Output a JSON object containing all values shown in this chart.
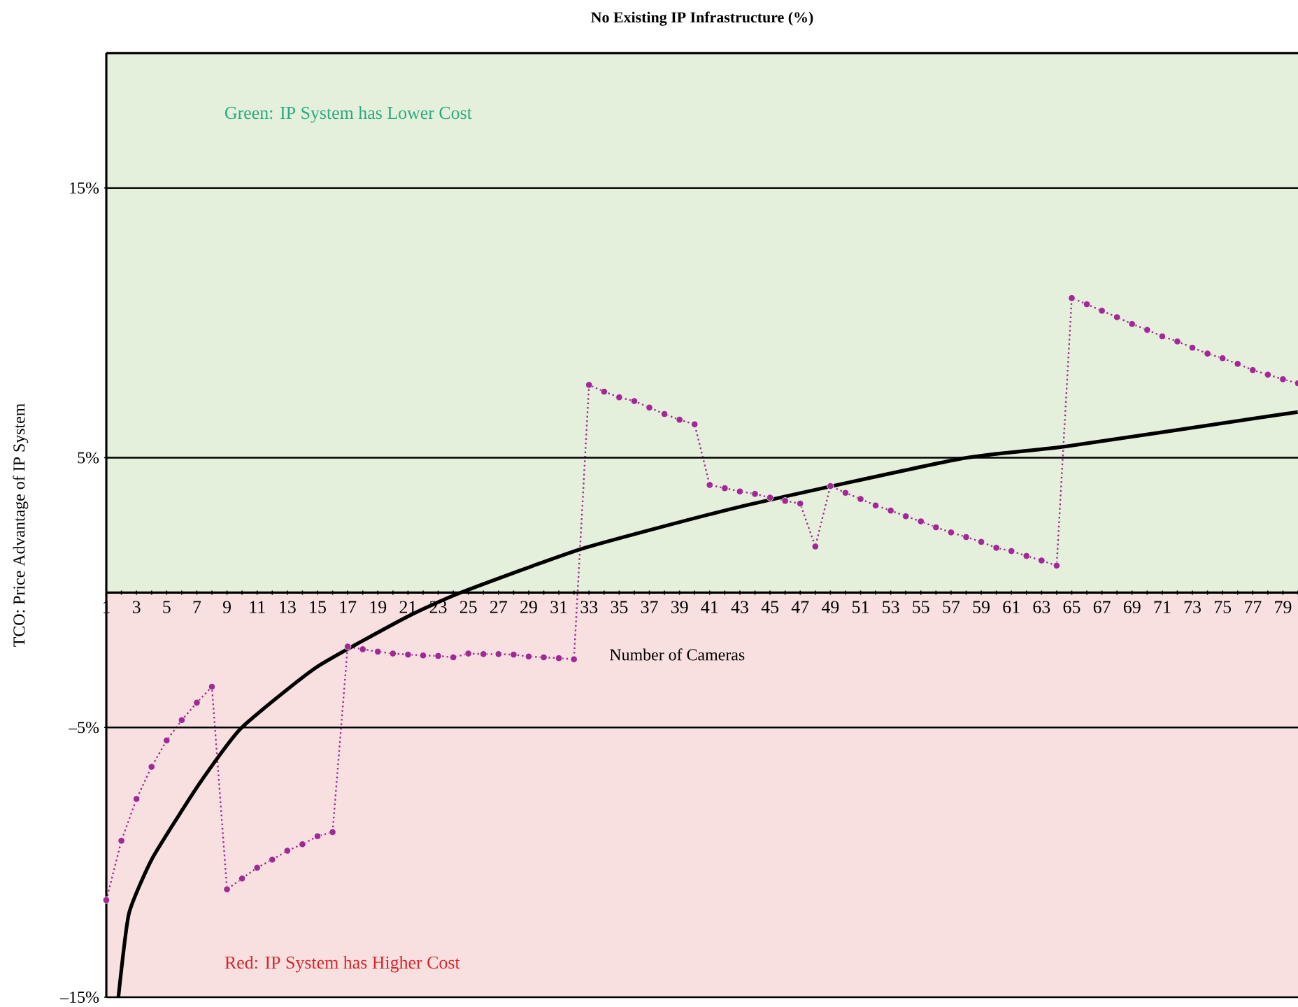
{
  "chart_data": {
    "type": "line",
    "title": "No Existing IP Infrastructure (%)",
    "xlabel": "Number of Cameras",
    "ylabel": "TCO: Price Advantage of IP System",
    "xlim": [
      1,
      80
    ],
    "ylim": [
      -15,
      20
    ],
    "xticks": [
      1,
      {
        "value": 2,
        "label": null
      },
      3,
      {
        "value": 4,
        "label": null
      },
      5,
      {
        "value": 6,
        "label": null
      },
      7,
      {
        "value": 8,
        "label": null
      },
      9,
      {
        "value": 10,
        "label": null
      },
      11,
      {
        "value": 12,
        "label": null
      },
      13,
      {
        "value": 14,
        "label": null
      },
      15,
      {
        "value": 16,
        "label": null
      },
      17,
      {
        "value": 18,
        "label": null
      },
      19,
      {
        "value": 20,
        "label": null
      },
      21,
      {
        "value": 22,
        "label": null
      },
      23,
      {
        "value": 24,
        "label": null
      },
      25,
      {
        "value": 26,
        "label": null
      },
      27,
      {
        "value": 28,
        "label": null
      },
      29,
      {
        "value": 30,
        "label": null
      },
      31,
      {
        "value": 32,
        "label": null
      },
      33,
      {
        "value": 34,
        "label": null
      },
      35,
      {
        "value": 36,
        "label": null
      },
      37,
      {
        "value": 38,
        "label": null
      },
      39,
      {
        "value": 40,
        "label": null
      },
      41,
      {
        "value": 42,
        "label": null
      },
      43,
      {
        "value": 44,
        "label": null
      },
      45,
      {
        "value": 46,
        "label": null
      },
      47,
      {
        "value": 48,
        "label": null
      },
      49,
      {
        "value": 50,
        "label": null
      },
      51,
      {
        "value": 52,
        "label": null
      },
      53,
      {
        "value": 54,
        "label": null
      },
      55,
      {
        "value": 56,
        "label": null
      },
      57,
      {
        "value": 58,
        "label": null
      },
      59,
      {
        "value": 60,
        "label": null
      },
      61,
      {
        "value": 62,
        "label": null
      },
      63,
      {
        "value": 64,
        "label": null
      },
      65,
      {
        "value": 66,
        "label": null
      },
      67,
      {
        "value": 68,
        "label": null
      },
      69,
      {
        "value": 70,
        "label": null
      },
      71,
      {
        "value": 72,
        "label": null
      },
      73,
      {
        "value": 74,
        "label": null
      },
      75,
      {
        "value": 76,
        "label": null
      },
      77,
      {
        "value": 78,
        "label": null
      },
      79,
      {
        "value": 80,
        "label": null
      }
    ],
    "yticks": [
      {
        "value": -15,
        "label": "–15%"
      },
      {
        "value": -5,
        "label": "–5%"
      },
      {
        "value": 5,
        "label": "5%"
      },
      {
        "value": 15,
        "label": "15%"
      }
    ],
    "grid": "y",
    "bands": [
      {
        "axis": "y",
        "from": 0,
        "to": 20,
        "label": "Green: IP System has Lower Cost",
        "color": "#e5f0dc"
      },
      {
        "axis": "y",
        "from": -15,
        "to": 0,
        "label": "Red: IP System has Higher Cost",
        "color": "#f9e0e0"
      }
    ],
    "series": [
      {
        "color": "#a02a92",
        "marker": "circle",
        "line_style": "dotted",
        "x": [
          1,
          2,
          3,
          4,
          5,
          6,
          7,
          8,
          9,
          10,
          11,
          12,
          13,
          14,
          15,
          16,
          17,
          18,
          19,
          20,
          21,
          22,
          23,
          24,
          25,
          26,
          27,
          28,
          29,
          30,
          31,
          32,
          33,
          34,
          35,
          36,
          37,
          38,
          39,
          40,
          41,
          42,
          43,
          44,
          45,
          46,
          47,
          48,
          49,
          50,
          51,
          52,
          53,
          54,
          55,
          56,
          57,
          58,
          59,
          60,
          61,
          62,
          63,
          64,
          65,
          66,
          67,
          68,
          69,
          70,
          71,
          72,
          73,
          74,
          75,
          76,
          77,
          78,
          79,
          80
        ],
        "values": [
          -11.4,
          -9.2,
          -7.65,
          -6.46,
          -5.48,
          -4.73,
          -4.08,
          -3.49,
          -11.0,
          -10.6,
          -10.2,
          -9.9,
          -9.57,
          -9.33,
          -9.03,
          -8.88,
          -2.0,
          -2.1,
          -2.19,
          -2.26,
          -2.3,
          -2.33,
          -2.35,
          -2.4,
          -2.26,
          -2.28,
          -2.28,
          -2.3,
          -2.37,
          -2.4,
          -2.43,
          -2.47,
          7.7,
          7.45,
          7.24,
          7.1,
          6.86,
          6.62,
          6.41,
          6.24,
          3.99,
          3.87,
          3.75,
          3.66,
          3.52,
          3.4,
          3.3,
          1.71,
          3.95,
          3.7,
          3.47,
          3.23,
          3.04,
          2.83,
          2.64,
          2.42,
          2.23,
          2.06,
          1.88,
          1.66,
          1.54,
          1.36,
          1.19,
          1.0,
          10.92,
          10.69,
          10.45,
          10.21,
          9.96,
          9.74,
          9.5,
          9.31,
          9.08,
          8.86,
          8.69,
          8.48,
          8.25,
          8.08,
          7.91,
          7.76
        ]
      },
      {
        "color": "#000000",
        "marker": "none",
        "line_style": "solid",
        "x": [
          1.8,
          2.5,
          4.06,
          7.15,
          9.93,
          14.9,
          21,
          24.5,
          32.5,
          43,
          57.6,
          64.6,
          79.2,
          80
        ],
        "values": [
          -15,
          -11.9,
          -9.84,
          -7.1,
          -5.03,
          -2.78,
          -0.88,
          0,
          1.62,
          3.18,
          4.96,
          5.42,
          6.63,
          6.7
        ]
      }
    ]
  }
}
